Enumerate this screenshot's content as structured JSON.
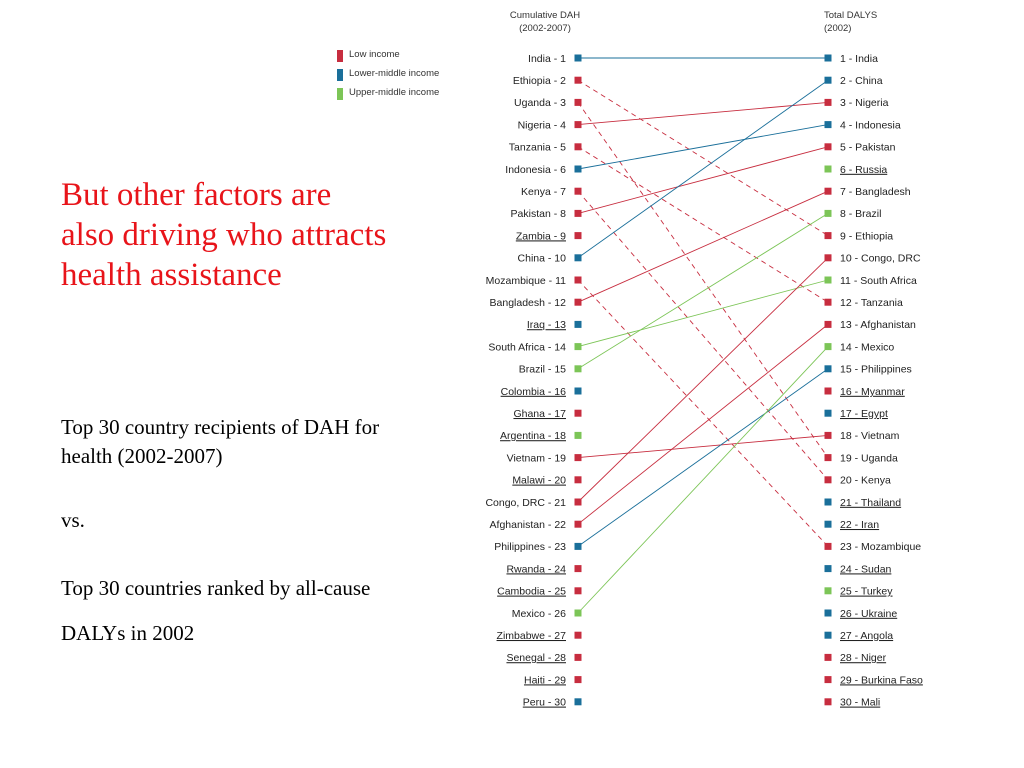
{
  "headline": "But other factors are also driving who attracts health assistance",
  "description": {
    "dah": "Top 30 country recipients of DAH for health (2002-2007)",
    "vs": "vs.",
    "daly": "Top 30 countries ranked by all-cause DALYs in 2002"
  },
  "colors": {
    "low": "#c72d3f",
    "lower_middle": "#1a6f9a",
    "upper_middle": "#7cc557"
  },
  "legend": [
    {
      "label": "Low income",
      "group": "low"
    },
    {
      "label": "Lower-middle income",
      "group": "lower_middle"
    },
    {
      "label": "Upper-middle income",
      "group": "upper_middle"
    }
  ],
  "chart_data": {
    "type": "slope",
    "left_header": [
      "Cumulative DAH",
      "(2002-2007)"
    ],
    "right_header": [
      "Total DALYS",
      "(2002)"
    ],
    "left": [
      {
        "label": "India - 1",
        "country": "India",
        "group": "lower_middle",
        "underline": false
      },
      {
        "label": "Ethiopia - 2",
        "country": "Ethiopia",
        "group": "low",
        "underline": false
      },
      {
        "label": "Uganda - 3",
        "country": "Uganda",
        "group": "low",
        "underline": false
      },
      {
        "label": "Nigeria - 4",
        "country": "Nigeria",
        "group": "low",
        "underline": false
      },
      {
        "label": "Tanzania - 5",
        "country": "Tanzania",
        "group": "low",
        "underline": false
      },
      {
        "label": "Indonesia - 6",
        "country": "Indonesia",
        "group": "lower_middle",
        "underline": false
      },
      {
        "label": "Kenya - 7",
        "country": "Kenya",
        "group": "low",
        "underline": false
      },
      {
        "label": "Pakistan - 8",
        "country": "Pakistan",
        "group": "low",
        "underline": false
      },
      {
        "label": "Zambia - 9",
        "country": "Zambia",
        "group": "low",
        "underline": true
      },
      {
        "label": "China - 10",
        "country": "China",
        "group": "lower_middle",
        "underline": false
      },
      {
        "label": "Mozambique - 11",
        "country": "Mozambique",
        "group": "low",
        "underline": false
      },
      {
        "label": "Bangladesh - 12",
        "country": "Bangladesh",
        "group": "low",
        "underline": false
      },
      {
        "label": "Iraq - 13",
        "country": "Iraq",
        "group": "lower_middle",
        "underline": true
      },
      {
        "label": "South Africa - 14",
        "country": "South Africa",
        "group": "upper_middle",
        "underline": false
      },
      {
        "label": "Brazil - 15",
        "country": "Brazil",
        "group": "upper_middle",
        "underline": false
      },
      {
        "label": "Colombia - 16",
        "country": "Colombia",
        "group": "lower_middle",
        "underline": true
      },
      {
        "label": "Ghana - 17",
        "country": "Ghana",
        "group": "low",
        "underline": true
      },
      {
        "label": "Argentina - 18",
        "country": "Argentina",
        "group": "upper_middle",
        "underline": true
      },
      {
        "label": "Vietnam - 19",
        "country": "Vietnam",
        "group": "low",
        "underline": false
      },
      {
        "label": "Malawi - 20",
        "country": "Malawi",
        "group": "low",
        "underline": true
      },
      {
        "label": "Congo, DRC - 21",
        "country": "Congo, DRC",
        "group": "low",
        "underline": false
      },
      {
        "label": "Afghanistan - 22",
        "country": "Afghanistan",
        "group": "low",
        "underline": false
      },
      {
        "label": "Philippines - 23",
        "country": "Philippines",
        "group": "lower_middle",
        "underline": false
      },
      {
        "label": "Rwanda - 24",
        "country": "Rwanda",
        "group": "low",
        "underline": true
      },
      {
        "label": "Cambodia - 25",
        "country": "Cambodia",
        "group": "low",
        "underline": true
      },
      {
        "label": "Mexico - 26",
        "country": "Mexico",
        "group": "upper_middle",
        "underline": false
      },
      {
        "label": "Zimbabwe - 27",
        "country": "Zimbabwe",
        "group": "low",
        "underline": true
      },
      {
        "label": "Senegal - 28",
        "country": "Senegal",
        "group": "low",
        "underline": true
      },
      {
        "label": "Haiti - 29",
        "country": "Haiti",
        "group": "low",
        "underline": true
      },
      {
        "label": "Peru - 30",
        "country": "Peru",
        "group": "lower_middle",
        "underline": true
      }
    ],
    "right": [
      {
        "label": "1 - India",
        "country": "India",
        "group": "lower_middle",
        "underline": false
      },
      {
        "label": "2 - China",
        "country": "China",
        "group": "lower_middle",
        "underline": false
      },
      {
        "label": "3 - Nigeria",
        "country": "Nigeria",
        "group": "low",
        "underline": false
      },
      {
        "label": "4 - Indonesia",
        "country": "Indonesia",
        "group": "lower_middle",
        "underline": false
      },
      {
        "label": "5 - Pakistan",
        "country": "Pakistan",
        "group": "low",
        "underline": false
      },
      {
        "label": "6 - Russia",
        "country": "Russia",
        "group": "upper_middle",
        "underline": true
      },
      {
        "label": "7 - Bangladesh",
        "country": "Bangladesh",
        "group": "low",
        "underline": false
      },
      {
        "label": "8 - Brazil",
        "country": "Brazil",
        "group": "upper_middle",
        "underline": false
      },
      {
        "label": "9 - Ethiopia",
        "country": "Ethiopia",
        "group": "low",
        "underline": false
      },
      {
        "label": "10 - Congo, DRC",
        "country": "Congo, DRC",
        "group": "low",
        "underline": false
      },
      {
        "label": "11 - South Africa",
        "country": "South Africa",
        "group": "upper_middle",
        "underline": false
      },
      {
        "label": "12 - Tanzania",
        "country": "Tanzania",
        "group": "low",
        "underline": false
      },
      {
        "label": "13 - Afghanistan",
        "country": "Afghanistan",
        "group": "low",
        "underline": false
      },
      {
        "label": "14 - Mexico",
        "country": "Mexico",
        "group": "upper_middle",
        "underline": false
      },
      {
        "label": "15 - Philippines",
        "country": "Philippines",
        "group": "lower_middle",
        "underline": false
      },
      {
        "label": "16 - Myanmar",
        "country": "Myanmar",
        "group": "low",
        "underline": true
      },
      {
        "label": "17 - Egypt",
        "country": "Egypt",
        "group": "lower_middle",
        "underline": true
      },
      {
        "label": "18 - Vietnam",
        "country": "Vietnam",
        "group": "low",
        "underline": false
      },
      {
        "label": "19 - Uganda",
        "country": "Uganda",
        "group": "low",
        "underline": false
      },
      {
        "label": "20 - Kenya",
        "country": "Kenya",
        "group": "low",
        "underline": false
      },
      {
        "label": "21 - Thailand",
        "country": "Thailand",
        "group": "lower_middle",
        "underline": true
      },
      {
        "label": "22 - Iran",
        "country": "Iran",
        "group": "lower_middle",
        "underline": true
      },
      {
        "label": "23 - Mozambique",
        "country": "Mozambique",
        "group": "low",
        "underline": false
      },
      {
        "label": "24 - Sudan",
        "country": "Sudan",
        "group": "lower_middle",
        "underline": true
      },
      {
        "label": "25 - Turkey",
        "country": "Turkey",
        "group": "upper_middle",
        "underline": true
      },
      {
        "label": "26 - Ukraine",
        "country": "Ukraine",
        "group": "lower_middle",
        "underline": true
      },
      {
        "label": "27 - Angola",
        "country": "Angola",
        "group": "lower_middle",
        "underline": true
      },
      {
        "label": "28 - Niger",
        "country": "Niger",
        "group": "low",
        "underline": true
      },
      {
        "label": "29 - Burkina Faso",
        "country": "Burkina Faso",
        "group": "low",
        "underline": true
      },
      {
        "label": "30 - Mali",
        "country": "Mali",
        "group": "low",
        "underline": true
      }
    ],
    "connections": [
      {
        "country": "India",
        "from": 1,
        "to": 1,
        "style": "solid",
        "group": "lower_middle"
      },
      {
        "country": "Ethiopia",
        "from": 2,
        "to": 9,
        "style": "dashed",
        "group": "low"
      },
      {
        "country": "Uganda",
        "from": 3,
        "to": 19,
        "style": "dashed",
        "group": "low"
      },
      {
        "country": "Nigeria",
        "from": 4,
        "to": 3,
        "style": "solid",
        "group": "low"
      },
      {
        "country": "Tanzania",
        "from": 5,
        "to": 12,
        "style": "dashed",
        "group": "low"
      },
      {
        "country": "Indonesia",
        "from": 6,
        "to": 4,
        "style": "solid",
        "group": "lower_middle"
      },
      {
        "country": "Kenya",
        "from": 7,
        "to": 20,
        "style": "dashed",
        "group": "low"
      },
      {
        "country": "Pakistan",
        "from": 8,
        "to": 5,
        "style": "solid",
        "group": "low"
      },
      {
        "country": "China",
        "from": 10,
        "to": 2,
        "style": "solid",
        "group": "lower_middle"
      },
      {
        "country": "Mozambique",
        "from": 11,
        "to": 23,
        "style": "dashed",
        "group": "low"
      },
      {
        "country": "Bangladesh",
        "from": 12,
        "to": 7,
        "style": "solid",
        "group": "low"
      },
      {
        "country": "South Africa",
        "from": 14,
        "to": 11,
        "style": "solid",
        "group": "upper_middle"
      },
      {
        "country": "Brazil",
        "from": 15,
        "to": 8,
        "style": "solid",
        "group": "upper_middle"
      },
      {
        "country": "Vietnam",
        "from": 19,
        "to": 18,
        "style": "solid",
        "group": "low"
      },
      {
        "country": "Congo, DRC",
        "from": 21,
        "to": 10,
        "style": "solid",
        "group": "low"
      },
      {
        "country": "Afghanistan",
        "from": 22,
        "to": 13,
        "style": "solid",
        "group": "low"
      },
      {
        "country": "Philippines",
        "from": 23,
        "to": 15,
        "style": "solid",
        "group": "lower_middle"
      },
      {
        "country": "Mexico",
        "from": 26,
        "to": 14,
        "style": "solid",
        "group": "upper_middle"
      }
    ]
  }
}
